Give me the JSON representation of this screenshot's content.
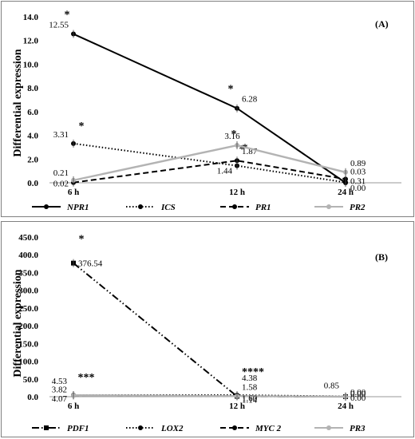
{
  "chart_data": [
    {
      "type": "line",
      "panel_label": "(A)",
      "ylabel": "Differential expression",
      "categories": [
        "6 h",
        "12 h",
        "24 h"
      ],
      "ylim": [
        0,
        14
      ],
      "yticks": [
        "0.0",
        "2.0",
        "4.0",
        "6.0",
        "8.0",
        "10.0",
        "12.0",
        "14.0"
      ],
      "legend_position": "bottom",
      "series": [
        {
          "name": "NPR1",
          "values": [
            12.55,
            6.28,
            0.0
          ],
          "color": "#000000",
          "style": "solid",
          "marker": "circle",
          "labels": [
            "12.55",
            "6.28",
            "0.00"
          ],
          "sig": [
            "*",
            "*",
            ""
          ]
        },
        {
          "name": "ICS",
          "values": [
            3.31,
            1.44,
            0.03
          ],
          "color": "#000000",
          "style": "dotted",
          "marker": "circle",
          "labels": [
            "3.31",
            "1.44",
            "0.03"
          ],
          "sig": [
            "*",
            "*",
            ""
          ]
        },
        {
          "name": "PR1",
          "values": [
            0.02,
            1.87,
            0.31
          ],
          "color": "#000000",
          "style": "dashed",
          "marker": "circle",
          "labels": [
            "0.02",
            "1.87",
            "0.31"
          ],
          "sig": [
            "",
            "*",
            ""
          ]
        },
        {
          "name": "PR2",
          "values": [
            0.21,
            3.16,
            0.89
          ],
          "color": "#b3b3b3",
          "style": "solid",
          "marker": "circle",
          "labels": [
            "0.21",
            "3.16",
            "0.89"
          ],
          "sig": [
            "",
            "*",
            ""
          ]
        }
      ]
    },
    {
      "type": "line",
      "panel_label": "(B)",
      "ylabel": "Differential expression",
      "categories": [
        "6 h",
        "12 h",
        "24 h"
      ],
      "ylim": [
        0,
        450
      ],
      "yticks": [
        "0.0",
        "50.0",
        "100.0",
        "150.0",
        "200.0",
        "250.0",
        "300.0",
        "350.0",
        "400.0",
        "450.0"
      ],
      "legend_position": "bottom",
      "series": [
        {
          "name": "PDF1",
          "values": [
            376.54,
            1.14,
            0.0
          ],
          "color": "#000000",
          "style": "dashdotdot",
          "marker": "square",
          "labels": [
            "376.54",
            "1.14",
            "0.00"
          ],
          "sig": [
            "*",
            "",
            ""
          ]
        },
        {
          "name": "LOX2",
          "values": [
            4.53,
            4.38,
            0.85
          ],
          "color": "#000000",
          "style": "dotted",
          "marker": "circle",
          "labels": [
            "4.53",
            "4.38",
            "0.85"
          ],
          "sig": [
            "",
            "",
            ""
          ]
        },
        {
          "name": "MYC 2",
          "values": [
            3.82,
            1.58,
            0.0
          ],
          "color": "#000000",
          "style": "dashed",
          "marker": "circle",
          "labels": [
            "3.82",
            "1.58",
            "0.00"
          ],
          "sig": [
            "",
            "",
            ""
          ]
        },
        {
          "name": "PR3",
          "values": [
            4.07,
            1.6,
            0.0
          ],
          "color": "#b3b3b3",
          "style": "solid",
          "marker": "circle",
          "labels": [
            "4.07",
            "1.60",
            "0.00"
          ],
          "sig": [
            "",
            "",
            ""
          ]
        }
      ],
      "group_sig": [
        "***",
        "****",
        ""
      ]
    }
  ]
}
